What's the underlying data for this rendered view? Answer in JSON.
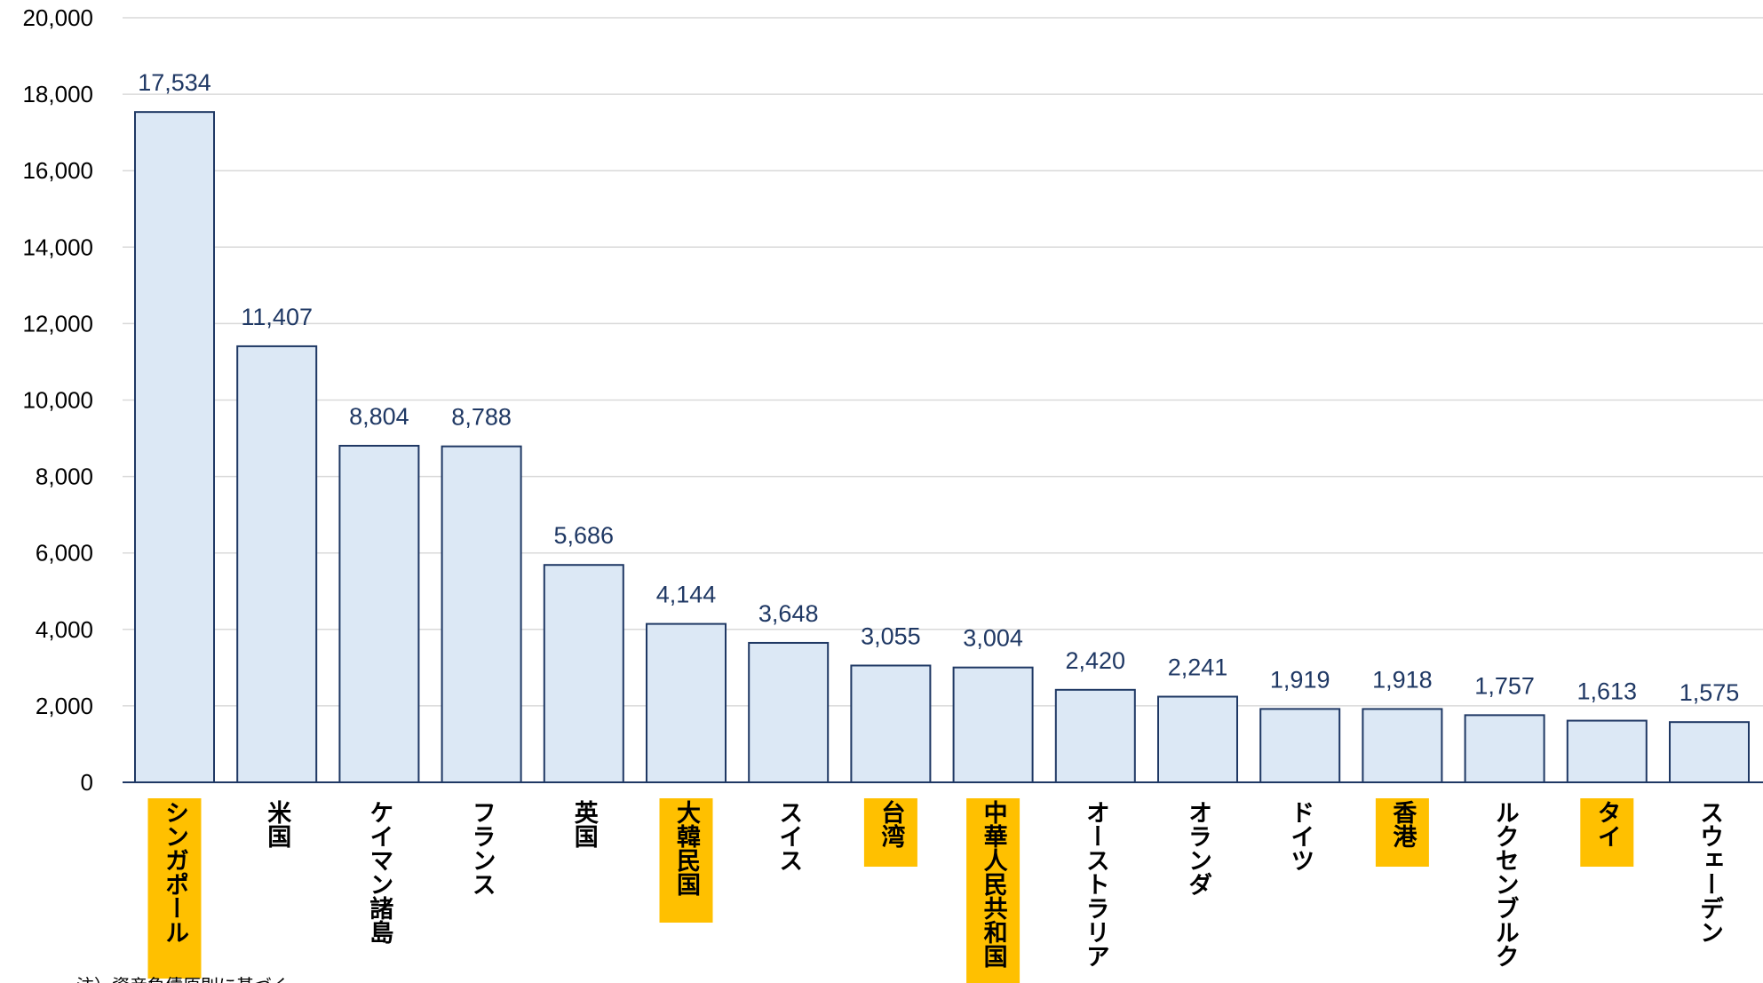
{
  "chart_data": {
    "type": "bar",
    "categories": [
      "シンガポール",
      "米国",
      "ケイマン諸島",
      "フランス",
      "英国",
      "大韓民国",
      "スイス",
      "台湾",
      "中華人民共和国",
      "オーストラリア",
      "オランダ",
      "ドイツ",
      "香港",
      "ルクセンブルク",
      "タイ",
      "スウェーデン"
    ],
    "values": [
      17534,
      11407,
      8804,
      8788,
      5686,
      4144,
      3648,
      3055,
      3004,
      2420,
      2241,
      1919,
      1918,
      1757,
      1613,
      1575
    ],
    "value_labels": [
      "17,534",
      "11,407",
      "8,804",
      "8,788",
      "5,686",
      "4,144",
      "3,648",
      "3,055",
      "3,004",
      "2,420",
      "2,241",
      "1,919",
      "1,918",
      "1,757",
      "1,613",
      "1,575"
    ],
    "highlighted": [
      true,
      false,
      false,
      false,
      false,
      true,
      false,
      true,
      true,
      false,
      false,
      false,
      true,
      false,
      true,
      false
    ],
    "ylim": [
      0,
      20000
    ],
    "yticks": [
      0,
      2000,
      4000,
      6000,
      8000,
      10000,
      12000,
      14000,
      16000,
      18000,
      20000
    ],
    "ytick_labels": [
      "0",
      "2,000",
      "4,000",
      "6,000",
      "8,000",
      "10,000",
      "12,000",
      "14,000",
      "16,000",
      "18,000",
      "20,000"
    ],
    "grid": true,
    "colors": {
      "bar_fill": "#dce8f5",
      "bar_stroke": "#1f3864",
      "label_text": "#1f3864",
      "highlight": "#ffc000",
      "gridline": "#d9d9d9"
    }
  },
  "note": "注）資産負債原則に基づく"
}
